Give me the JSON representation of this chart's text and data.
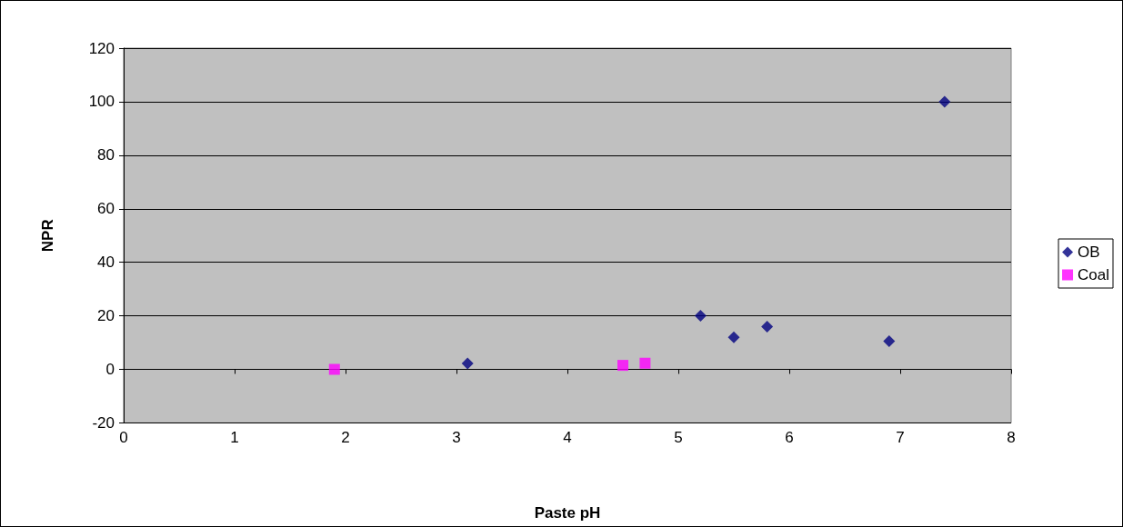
{
  "chart_data": {
    "type": "scatter",
    "xlabel": "Paste pH",
    "ylabel": "NPR",
    "xlim": [
      0,
      8
    ],
    "xticks": [
      0,
      1,
      2,
      3,
      4,
      5,
      6,
      7,
      8
    ],
    "ylim": [
      -20,
      120
    ],
    "yticks": [
      -20,
      0,
      20,
      40,
      60,
      80,
      100,
      120
    ],
    "grid": "y",
    "legend": "right",
    "series": [
      {
        "name": "OB",
        "color": "#000080",
        "marker": "diamond",
        "x": [
          3.1,
          5.2,
          5.5,
          5.8,
          6.9,
          7.4
        ],
        "values": [
          2.2,
          20,
          12,
          16,
          10.5,
          100
        ]
      },
      {
        "name": "Coal",
        "color": "#ff00ff",
        "marker": "square",
        "x": [
          1.9,
          4.5,
          4.7
        ],
        "values": [
          0,
          1.5,
          2.3
        ]
      }
    ]
  }
}
